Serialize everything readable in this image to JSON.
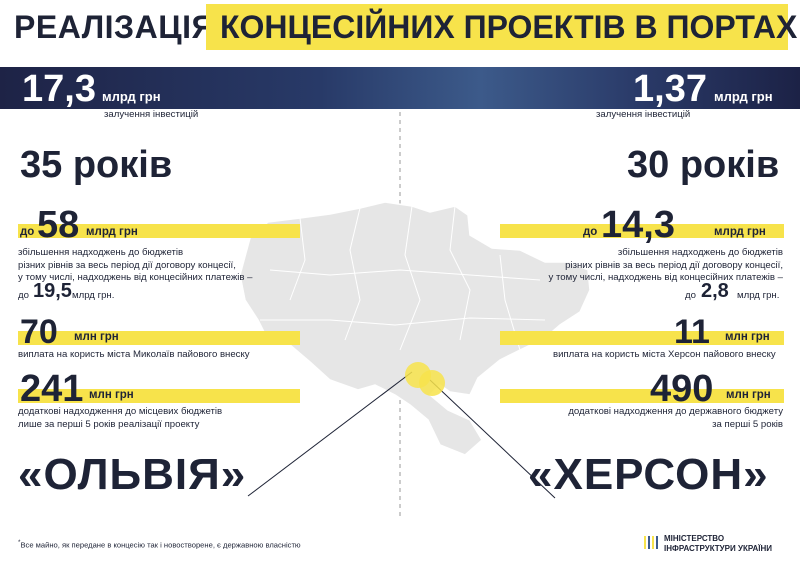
{
  "title": {
    "dark": "РЕАЛІЗАЦІЯ",
    "highlight": "КОНЦЕСІЙНИХ ПРОЕКТІВ В ПОРТАХ"
  },
  "left": {
    "investment": {
      "value": "17,3",
      "unit": "млрд грн",
      "label": "залучення інвестицій"
    },
    "years": "35 років",
    "budget": {
      "prefix": "до",
      "value": "58",
      "unit": "млрд грн",
      "lines": [
        "збільшення надходжень до бюджетів",
        "різних рівнів за весь період дії договору концесії,",
        "у тому числі, надходжень від концесійних платежів –"
      ],
      "sub_prefix": "до",
      "sub_value": "19,5",
      "sub_unit": "млрд грн."
    },
    "city_payment": {
      "value": "70",
      "unit": "млн грн",
      "label": "виплата на користь міста Миколаїв пайового внеску"
    },
    "local_budgets": {
      "value": "241",
      "unit": "млн грн",
      "lines": [
        "додаткові надходження до місцевих бюджетів",
        "лише за перші 5 років реалізації проекту"
      ]
    },
    "project_name": "«ОЛЬВІЯ»"
  },
  "right": {
    "investment": {
      "value": "1,37",
      "unit": "млрд грн",
      "label": "залучення інвестицій"
    },
    "years": "30 років",
    "budget": {
      "prefix": "до",
      "value": "14,3",
      "unit": "млрд грн",
      "lines": [
        "збільшення надходжень до бюджетів",
        "різних рівнів за весь період дії договору концесії,",
        "у тому числі, надходжень від концесійних платежів –"
      ],
      "sub_prefix": "до",
      "sub_value": "2,8",
      "sub_unit": "млрд грн."
    },
    "city_payment": {
      "value": "11",
      "unit": "млн грн",
      "label": "виплата на користь міста Херсон пайового внеску"
    },
    "state_budget": {
      "value": "490",
      "unit": "млн грн",
      "lines": [
        "додаткові надходження до державного бюджету",
        "за перші 5 років"
      ]
    },
    "project_name": "«ХЕРСОН»"
  },
  "footnote": {
    "mark": "*",
    "text": "Все майно, як передане в концесію так і новостворене, є державною власністю"
  },
  "logo": {
    "line1": "МІНІСТЕРСТВО",
    "line2": "ІНФРАСТРУКТУРИ УКРАЇНИ"
  },
  "colors": {
    "accent_yellow": "#f7e34b",
    "dark_navy": "#1e2336",
    "band_blue": "#283a68",
    "map_gray": "#e6e6e6"
  }
}
